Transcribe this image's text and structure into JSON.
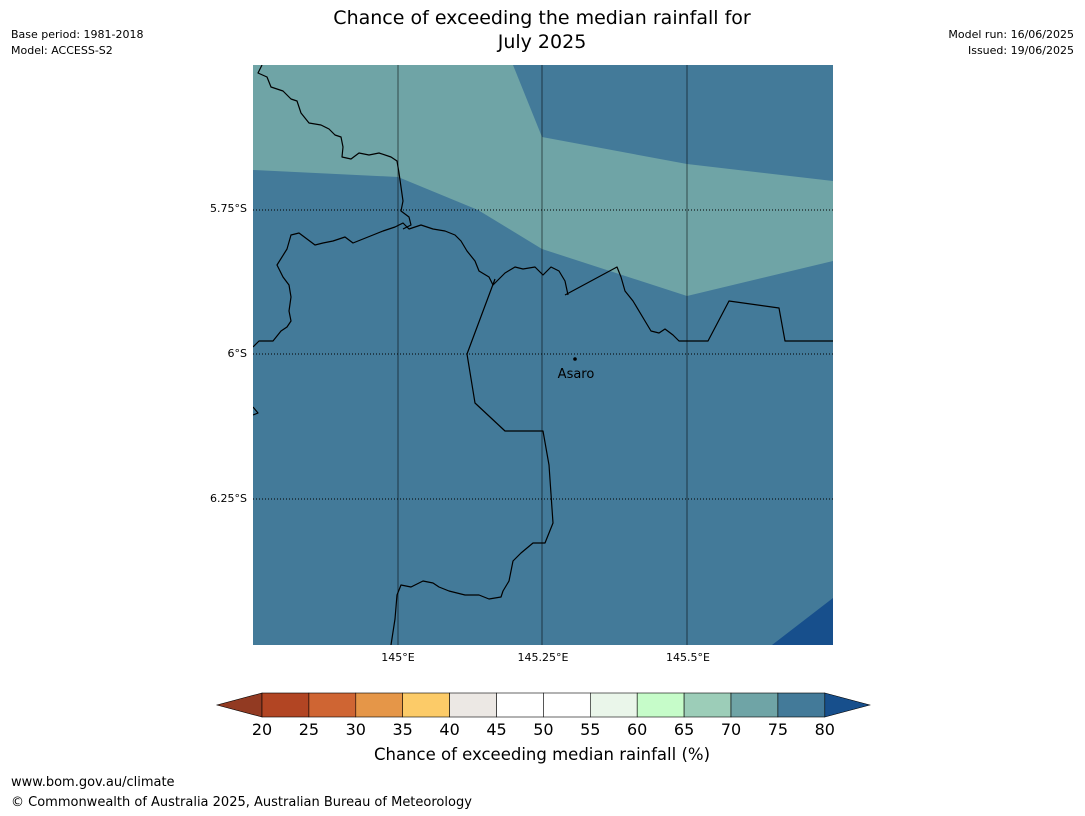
{
  "title": [
    "Chance of exceeding the median rainfall for",
    "July 2025"
  ],
  "meta_left": [
    "Base period: 1981-2018",
    "Model: ACCESS-S2"
  ],
  "meta_right": [
    "Model run: 16/06/2025",
    "Issued: 19/06/2025"
  ],
  "map": {
    "lat_labels": [
      "5.75°S",
      "6°S",
      "6.25°S"
    ],
    "lon_labels": [
      "145°E",
      "145.25°E",
      "145.5°E"
    ],
    "place": {
      "name": "Asaro"
    },
    "colors": {
      "band_70_75": "#6fa4a6",
      "band_75_80": "#437a99",
      "band_above_80": "#174f8c",
      "border": "#000000",
      "gridline": "#000000"
    }
  },
  "colorbar": {
    "title": "Chance of exceeding median rainfall (%)",
    "ticks": [
      "20",
      "25",
      "30",
      "35",
      "40",
      "45",
      "50",
      "55",
      "60",
      "65",
      "70",
      "75",
      "80"
    ],
    "colors": [
      "#b24523",
      "#cf6533",
      "#e59648",
      "#fccb68",
      "#ece8e4",
      "#ffffff",
      "#ffffff",
      "#eaf6ea",
      "#c6fcc9",
      "#9ccdb8",
      "#6fa4a6",
      "#437a99"
    ],
    "under_color": "#923a22",
    "over_color": "#174f8c"
  },
  "footer": {
    "url": "www.bom.gov.au/climate",
    "copyright": "© Commonwealth of Australia 2025, Australian Bureau of Meteorology"
  }
}
